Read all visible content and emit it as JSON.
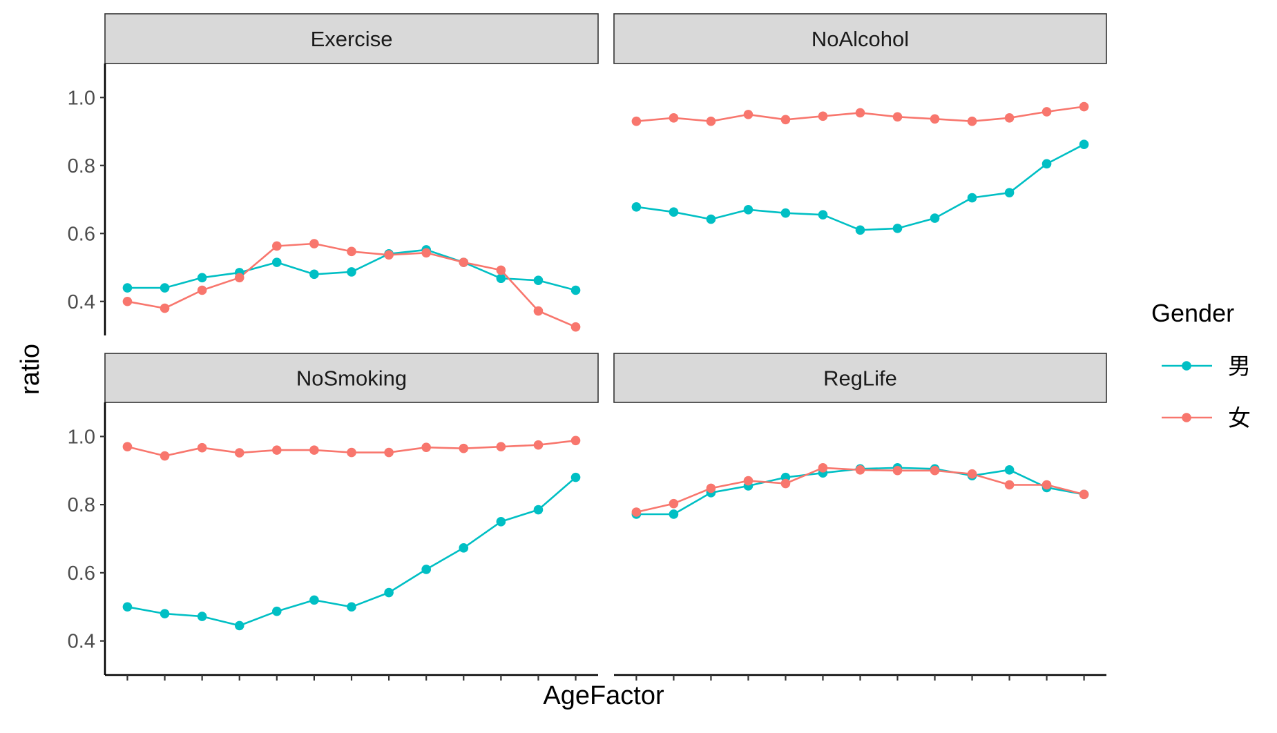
{
  "chart_data": {
    "type": "line",
    "facet_by": "Behavior",
    "xlabel": "AgeFactor",
    "ylabel": "ratio",
    "ylim": [
      0.3,
      1.1
    ],
    "y_ticks": [
      0.4,
      0.6,
      0.8,
      1.0
    ],
    "y_tick_labels": [
      "0.4",
      "0.6",
      "0.8",
      "1.0"
    ],
    "x_count": 13,
    "x_tick_labels_visible": false,
    "grid": false,
    "legend": {
      "title": "Gender",
      "position": "right",
      "entries": [
        {
          "label": "男",
          "color": "#00BFC4"
        },
        {
          "label": "女",
          "color": "#F8766D"
        }
      ]
    },
    "panels": [
      {
        "title": "Exercise",
        "series": [
          {
            "name": "男",
            "color": "#00BFC4",
            "values": [
              0.44,
              0.44,
              0.47,
              0.485,
              0.515,
              0.48,
              0.487,
              0.54,
              0.552,
              0.515,
              0.468,
              0.462,
              0.433
            ]
          },
          {
            "name": "女",
            "color": "#F8766D",
            "values": [
              0.4,
              0.38,
              0.433,
              0.47,
              0.563,
              0.57,
              0.547,
              0.537,
              0.543,
              0.515,
              0.492,
              0.372,
              0.325
            ]
          }
        ]
      },
      {
        "title": "NoAlcohol",
        "series": [
          {
            "name": "男",
            "color": "#00BFC4",
            "values": [
              0.678,
              0.663,
              0.642,
              0.67,
              0.66,
              0.655,
              0.61,
              0.615,
              0.645,
              0.705,
              0.72,
              0.805,
              0.862
            ]
          },
          {
            "name": "女",
            "color": "#F8766D",
            "values": [
              0.93,
              0.94,
              0.93,
              0.95,
              0.935,
              0.945,
              0.955,
              0.943,
              0.937,
              0.93,
              0.94,
              0.958,
              0.973
            ]
          }
        ]
      },
      {
        "title": "NoSmoking",
        "series": [
          {
            "name": "男",
            "color": "#00BFC4",
            "values": [
              0.5,
              0.48,
              0.472,
              0.445,
              0.487,
              0.52,
              0.5,
              0.542,
              0.61,
              0.673,
              0.75,
              0.785,
              0.88
            ]
          },
          {
            "name": "女",
            "color": "#F8766D",
            "values": [
              0.97,
              0.943,
              0.967,
              0.952,
              0.96,
              0.96,
              0.953,
              0.953,
              0.968,
              0.965,
              0.97,
              0.975,
              0.988
            ]
          }
        ]
      },
      {
        "title": "RegLife",
        "series": [
          {
            "name": "男",
            "color": "#00BFC4",
            "values": [
              0.772,
              0.772,
              0.835,
              0.855,
              0.88,
              0.893,
              0.905,
              0.908,
              0.905,
              0.885,
              0.902,
              0.85,
              0.83
            ]
          },
          {
            "name": "女",
            "color": "#F8766D",
            "values": [
              0.778,
              0.803,
              0.848,
              0.87,
              0.862,
              0.908,
              0.902,
              0.9,
              0.9,
              0.89,
              0.858,
              0.858,
              0.83
            ]
          }
        ]
      }
    ]
  }
}
